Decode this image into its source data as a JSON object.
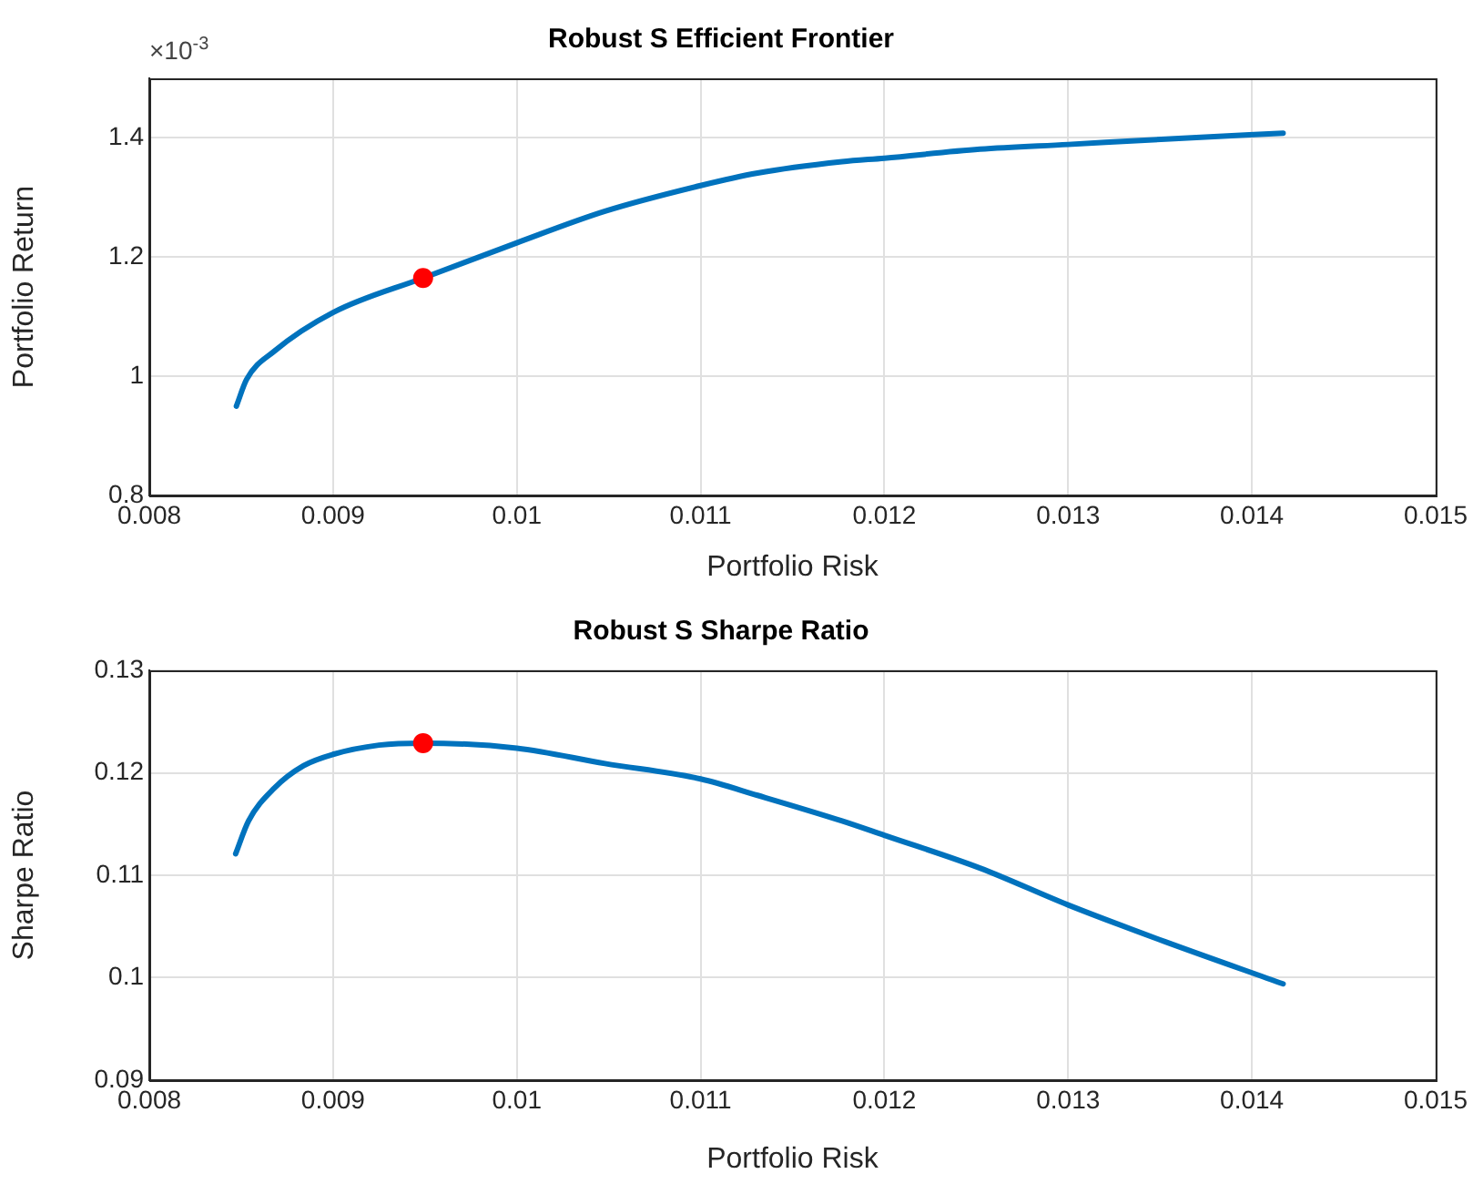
{
  "chart_data": [
    {
      "type": "line",
      "title": "Robust S Efficient Frontier",
      "xlabel": "Portfolio Risk",
      "ylabel": "Portfolio Return",
      "annotations": [
        "×10$^{-3}$"
      ],
      "grid": true,
      "legend": false,
      "xlim": [
        0.008,
        0.015
      ],
      "xticks": [
        0.008,
        0.009,
        0.01,
        0.011,
        0.012,
        0.013,
        0.014,
        0.015
      ],
      "ylim": [
        0.8,
        1.5
      ],
      "yticks": [
        0.8,
        1,
        1.2,
        1.4
      ],
      "series": [
        {
          "color": "#0072bd",
          "marker": "none",
          "x": [
            0.008474,
            0.00853,
            0.00868,
            0.009,
            0.00949,
            0.01,
            0.01048,
            0.011,
            0.01131,
            0.01177,
            0.012,
            0.01252,
            0.013,
            0.01353,
            0.01417
          ],
          "values": [
            0.95,
            0.995,
            1.042,
            1.107,
            1.165,
            1.224,
            1.277,
            1.32,
            1.341,
            1.36,
            1.366,
            1.381,
            1.389,
            1.398,
            1.408
          ]
        },
        {
          "type": "scatter",
          "color": "#ff0000",
          "marker": "circle",
          "x": [
            0.00949
          ],
          "values": [
            1.165
          ]
        }
      ]
    },
    {
      "type": "line",
      "title": "Robust S Sharpe Ratio",
      "xlabel": "Portfolio Risk",
      "ylabel": "Sharpe Ratio",
      "grid": true,
      "legend": false,
      "xlim": [
        0.008,
        0.015
      ],
      "xticks": [
        0.008,
        0.009,
        0.01,
        0.011,
        0.012,
        0.013,
        0.014,
        0.015
      ],
      "ylim": [
        0.09,
        0.13
      ],
      "yticks": [
        0.09,
        0.1,
        0.11,
        0.12,
        0.13
      ],
      "series": [
        {
          "color": "#0072bd",
          "marker": "none",
          "x": [
            0.00847,
            0.00854,
            0.00868,
            0.00884,
            0.009,
            0.00925,
            0.00949,
            0.01,
            0.01048,
            0.011,
            0.01131,
            0.01177,
            0.012,
            0.01252,
            0.013,
            0.01353,
            0.01417
          ],
          "values": [
            0.1121,
            0.1153,
            0.1185,
            0.1207,
            0.1218,
            0.1227,
            0.1229,
            0.1224,
            0.1209,
            0.1194,
            0.1178,
            0.1153,
            0.1139,
            0.1107,
            0.1071,
            0.1035,
            0.0994
          ]
        },
        {
          "type": "scatter",
          "color": "#ff0000",
          "marker": "circle",
          "x": [
            0.00949
          ],
          "values": [
            0.1229
          ]
        }
      ]
    }
  ]
}
